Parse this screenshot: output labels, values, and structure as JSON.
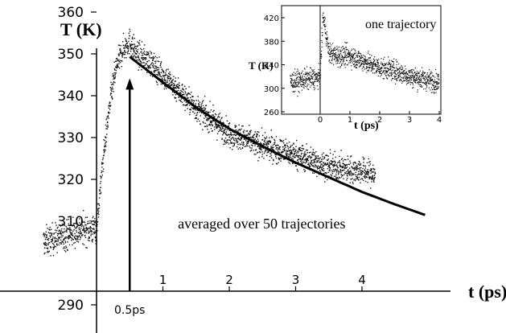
{
  "chart_data": [
    {
      "type": "scatter",
      "title": "",
      "xlabel": "t (ps)",
      "ylabel": "T (K)",
      "xlim": [
        -0.85,
        5.0
      ],
      "ylim": [
        288,
        362
      ],
      "x_ticks": [
        1,
        2,
        3,
        4
      ],
      "x_tick_labels": [
        "1",
        "2",
        "3",
        "4"
      ],
      "y_ticks": [
        290,
        310,
        320,
        330,
        340,
        350,
        360
      ],
      "y_tick_labels": [
        "290",
        "310",
        "320",
        "330",
        "340",
        "350",
        "360"
      ],
      "grid": false,
      "series": [
        {
          "kind": "scatter",
          "x": [
            -0.8,
            -0.6,
            -0.4,
            -0.2,
            0.0,
            0.1,
            0.2,
            0.3,
            0.4,
            0.5,
            0.6,
            0.8,
            1.0,
            1.5,
            2.0,
            2.5,
            3.0,
            3.5,
            4.0,
            4.2
          ],
          "y": [
            305,
            306,
            307,
            308,
            308,
            325,
            338,
            347,
            351,
            353,
            350,
            348,
            345,
            337,
            331,
            328,
            326,
            323,
            322,
            321
          ]
        },
        {
          "kind": "line",
          "x": [
            0.5,
            1.0,
            1.5,
            2.0,
            2.5,
            3.0,
            3.5,
            4.0,
            4.5,
            4.95
          ],
          "y": [
            349.3,
            343.2,
            337.2,
            332.1,
            327.9,
            324.0,
            320.5,
            317.0,
            314.0,
            311.5
          ]
        }
      ],
      "annotations": [
        {
          "text": "averaged over 50 trajectories",
          "x": 2.05,
          "y": 311
        },
        {
          "text": "0.5ps",
          "x": 0.5,
          "y": 288.8,
          "arrow_to_y": 348
        }
      ]
    },
    {
      "type": "scatter",
      "title": "",
      "xlabel": "t (ps)",
      "ylabel": "T (K)",
      "xlim": [
        -1.0,
        4.0
      ],
      "ylim": [
        240,
        430
      ],
      "x_ticks": [
        0,
        1,
        2,
        3,
        4
      ],
      "x_tick_labels": [
        "0",
        "1",
        "2",
        "3",
        "4"
      ],
      "y_ticks": [
        260,
        300,
        340,
        380,
        420
      ],
      "y_tick_labels": [
        "260",
        "300",
        "340",
        "380",
        "420"
      ],
      "grid": false,
      "series": [
        {
          "kind": "scatter",
          "x": [
            -1.0,
            -0.5,
            0.0,
            0.1,
            0.3,
            0.6,
            1.0,
            1.5,
            2.0,
            2.5,
            3.0,
            3.5,
            4.0
          ],
          "y": [
            310,
            315,
            318,
            425,
            360,
            355,
            355,
            345,
            335,
            330,
            320,
            315,
            310
          ]
        }
      ],
      "annotations": [
        {
          "text": "one trajectory",
          "x": 2.4,
          "y": 410
        }
      ]
    }
  ]
}
